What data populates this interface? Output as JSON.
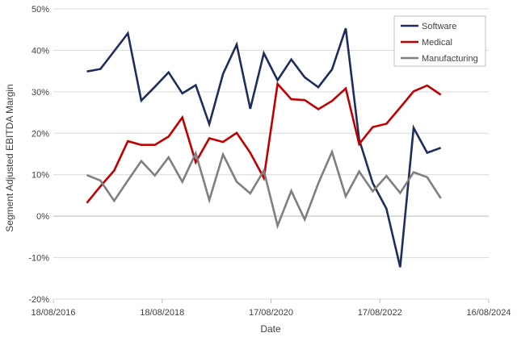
{
  "chart_data": {
    "type": "line",
    "xlabel": "Date",
    "ylabel": "Segment Adjusted EBITDA Margin",
    "ylim": [
      -20,
      50
    ],
    "yticks": [
      -20,
      -10,
      0,
      10,
      20,
      30,
      40,
      50
    ],
    "ytick_labels": [
      "-20%",
      "-10%",
      "0%",
      "10%",
      "20%",
      "30%",
      "40%",
      "50%"
    ],
    "xlim": [
      "2016-08-18",
      "2024-08-16"
    ],
    "xticks": [
      "2016-08-18",
      "2018-08-18",
      "2020-08-17",
      "2022-08-17",
      "2024-08-16"
    ],
    "xtick_labels": [
      "18/08/2016",
      "18/08/2018",
      "17/08/2020",
      "17/08/2022",
      "16/08/2024"
    ],
    "grid": "horizontal",
    "legend_position": "top-right",
    "x": [
      "2017-03-31",
      "2017-06-30",
      "2017-09-30",
      "2017-12-31",
      "2018-03-31",
      "2018-06-30",
      "2018-09-30",
      "2018-12-31",
      "2019-03-31",
      "2019-06-30",
      "2019-09-30",
      "2019-12-31",
      "2020-03-31",
      "2020-06-30",
      "2020-09-30",
      "2020-12-31",
      "2021-03-31",
      "2021-06-30",
      "2021-09-30",
      "2021-12-31",
      "2022-03-31",
      "2022-06-30",
      "2022-09-30",
      "2022-12-31",
      "2023-03-31",
      "2023-06-30",
      "2023-09-30",
      "2023-12-31"
    ],
    "series": [
      {
        "name": "Software",
        "color": "#1f2d5c",
        "values": [
          34.9,
          35.5,
          39.8,
          44.1,
          27.9,
          31.2,
          34.7,
          29.6,
          31.6,
          22.2,
          34.3,
          41.4,
          25.9,
          39.3,
          32.8,
          37.8,
          33.5,
          31.1,
          35.4,
          45.3,
          18.5,
          8.0,
          1.8,
          -12.3,
          21.3,
          15.3,
          16.5,
          null
        ]
      },
      {
        "name": "Medical",
        "color": "#c00000",
        "values": [
          3.2,
          7.2,
          11.0,
          18.1,
          17.2,
          17.2,
          19.2,
          23.8,
          13.0,
          18.8,
          17.9,
          20.1,
          15.3,
          9.2,
          31.9,
          28.2,
          28.0,
          25.8,
          27.8,
          30.8,
          17.4,
          21.5,
          22.3,
          26.2,
          30.1,
          31.5,
          29.3,
          null
        ]
      },
      {
        "name": "Manufacturing",
        "color": "#7f7f7f",
        "values": [
          9.9,
          8.6,
          3.7,
          8.6,
          13.3,
          9.8,
          14.2,
          8.3,
          15.2,
          3.9,
          14.9,
          8.3,
          5.5,
          11.0,
          -2.3,
          6.1,
          -0.8,
          7.9,
          15.5,
          4.8,
          10.8,
          6.0,
          9.7,
          5.6,
          10.6,
          9.4,
          4.3,
          null
        ]
      }
    ]
  }
}
